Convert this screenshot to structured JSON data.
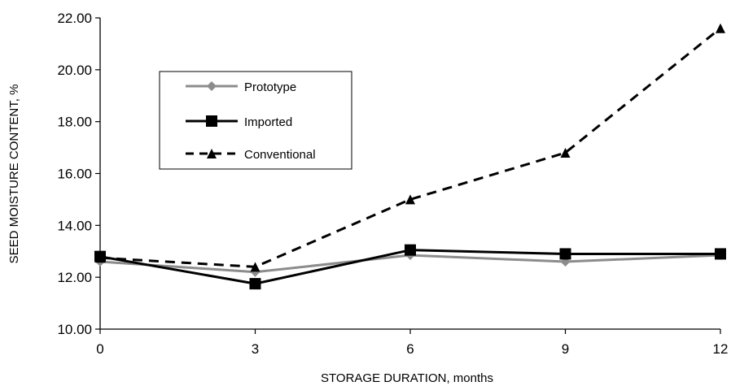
{
  "chart_data": {
    "type": "line",
    "xlabel": "STORAGE DURATION, months",
    "ylabel": "SEED MOISTURE CONTENT, %",
    "x": [
      0,
      3,
      6,
      9,
      12
    ],
    "x_ticks": [
      "0",
      "3",
      "6",
      "9",
      "12"
    ],
    "y_ticks": [
      "10.00",
      "12.00",
      "14.00",
      "16.00",
      "18.00",
      "20.00",
      "22.00"
    ],
    "xlim": [
      0,
      12
    ],
    "ylim": [
      10,
      22
    ],
    "grid": false,
    "legend_position": "upper-left inside plot",
    "series": [
      {
        "name": "Prototype",
        "values": [
          12.6,
          12.2,
          12.85,
          12.6,
          12.85
        ],
        "color": "#8c8c8c",
        "marker": "diamond",
        "dash": "solid"
      },
      {
        "name": "Imported",
        "values": [
          12.8,
          11.75,
          13.05,
          12.9,
          12.9
        ],
        "color": "#000000",
        "marker": "square",
        "dash": "solid"
      },
      {
        "name": "Conventional",
        "values": [
          12.75,
          12.4,
          15.0,
          16.8,
          21.6
        ],
        "color": "#000000",
        "marker": "triangle",
        "dash": "dashed"
      }
    ]
  }
}
